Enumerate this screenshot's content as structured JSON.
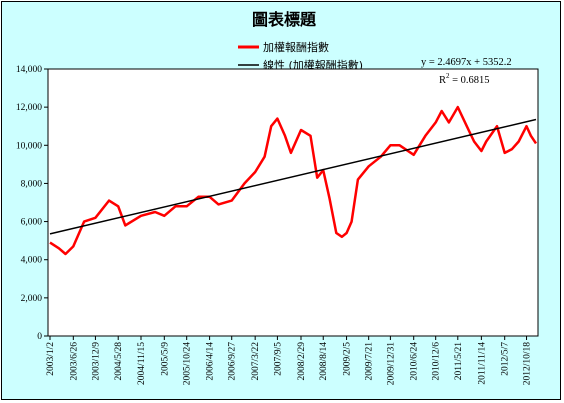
{
  "chart_data": {
    "type": "line",
    "title": "圖表標題",
    "xlabel": "",
    "ylabel": "",
    "ylim": [
      0,
      14000
    ],
    "y_ticks": [
      "0",
      "2,000",
      "4,000",
      "6,000",
      "8,000",
      "10,000",
      "12,000",
      "14,000"
    ],
    "y_tick_values": [
      0,
      2000,
      4000,
      6000,
      8000,
      10000,
      12000,
      14000
    ],
    "x_ticks": [
      "2003/1/2",
      "2003/6/26",
      "2003/12/9",
      "2004/5/28",
      "2004/11/15",
      "2005/5/9",
      "2005/10/24",
      "2006/4/14",
      "2006/9/27",
      "2007/3/22",
      "2007/9/5",
      "2008/2/29",
      "2008/8/14",
      "2009/2/5",
      "2009/7/21",
      "2009/12/31",
      "2010/6/24",
      "2010/12/6",
      "2011/5/21",
      "2011/11/14",
      "2012/5/7",
      "2012/10/18"
    ],
    "grid": false,
    "legend_position": "top",
    "series": [
      {
        "name": "加權報酬指數",
        "color": "#ff0000",
        "style": "line",
        "x": [
          "2003/1/2",
          "2003/3/10",
          "2003/4/28",
          "2003/6/26",
          "2003/9/15",
          "2003/12/9",
          "2004/3/20",
          "2004/5/28",
          "2004/7/20",
          "2004/11/15",
          "2005/3/1",
          "2005/5/9",
          "2005/8/1",
          "2005/10/24",
          "2006/1/20",
          "2006/4/14",
          "2006/6/20",
          "2006/9/27",
          "2007/1/1",
          "2007/3/22",
          "2007/6/1",
          "2007/7/20",
          "2007/9/5",
          "2007/11/1",
          "2007/12/15",
          "2008/2/29",
          "2008/5/10",
          "2008/6/30",
          "2008/8/14",
          "2008/10/1",
          "2008/11/20",
          "2009/1/1",
          "2009/2/5",
          "2009/3/15",
          "2009/5/1",
          "2009/7/21",
          "2009/10/20",
          "2009/12/31",
          "2010/3/10",
          "2010/6/24",
          "2010/9/20",
          "2010/12/6",
          "2011/1/20",
          "2011/3/15",
          "2011/5/21",
          "2011/8/10",
          "2011/9/20",
          "2011/11/14",
          "2011/12/20",
          "2012/3/10",
          "2012/5/7",
          "2012/7/1",
          "2012/8/20",
          "2012/10/18",
          "2012/11/20",
          "2012/12/28"
        ],
        "y": [
          4900,
          4600,
          4300,
          4700,
          6000,
          6200,
          7100,
          6800,
          5800,
          6300,
          6500,
          6300,
          6800,
          6800,
          7300,
          7300,
          6900,
          7100,
          8000,
          8600,
          9400,
          11000,
          11400,
          10500,
          9600,
          10800,
          10500,
          8300,
          8700,
          7200,
          5400,
          5200,
          5400,
          6000,
          8200,
          8900,
          9400,
          10000,
          10000,
          9500,
          10500,
          11200,
          11800,
          11200,
          12000,
          10800,
          10200,
          9700,
          10200,
          11000,
          9600,
          9800,
          10200,
          11000,
          10500,
          10100
        ]
      },
      {
        "name": "線性 (加權報酬指數)",
        "color": "#000000",
        "style": "trendline",
        "x": [
          "2003/1/2",
          "2012/12/28"
        ],
        "y": [
          5352,
          11350
        ]
      }
    ],
    "annotations": {
      "equation": "y = 2.4697x + 5352.2",
      "r2_prefix": "R",
      "r2_sup": "2",
      "r2_suffix": " = 0.6815"
    }
  }
}
